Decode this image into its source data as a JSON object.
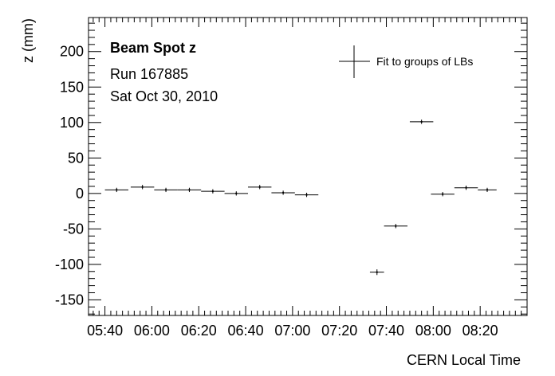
{
  "chart_data": {
    "type": "scatter",
    "title": "Beam Spot z",
    "info_lines": [
      "Run 167885",
      "Sat Oct 30, 2010"
    ],
    "xlabel": "CERN Local Time",
    "ylabel": "z (mm)",
    "xlim": [
      "05:33",
      "08:40"
    ],
    "ylim": [
      -172,
      248
    ],
    "xticks": [
      "05:40",
      "06:00",
      "06:20",
      "06:40",
      "07:00",
      "07:20",
      "07:40",
      "08:00",
      "08:20"
    ],
    "yticks": [
      -150,
      -100,
      -50,
      0,
      50,
      100,
      150,
      200
    ],
    "legend_position": "top-right",
    "series": [
      {
        "name": "Fit to groups of LBs",
        "points": [
          {
            "x": "05:45",
            "xerr_min": 5,
            "y": 5,
            "yerr": 3
          },
          {
            "x": "05:56",
            "xerr_min": 5,
            "y": 9,
            "yerr": 3
          },
          {
            "x": "06:06",
            "xerr_min": 5,
            "y": 5,
            "yerr": 3
          },
          {
            "x": "06:16",
            "xerr_min": 5,
            "y": 5,
            "yerr": 3
          },
          {
            "x": "06:26",
            "xerr_min": 5,
            "y": 3,
            "yerr": 3
          },
          {
            "x": "06:36",
            "xerr_min": 5,
            "y": 0,
            "yerr": 3
          },
          {
            "x": "06:46",
            "xerr_min": 5,
            "y": 9,
            "yerr": 3
          },
          {
            "x": "06:56",
            "xerr_min": 5,
            "y": 1,
            "yerr": 3
          },
          {
            "x": "07:06",
            "xerr_min": 5,
            "y": -2,
            "yerr": 3
          },
          {
            "x": "07:36",
            "xerr_min": 3,
            "y": -111,
            "yerr": 4
          },
          {
            "x": "07:44",
            "xerr_min": 5,
            "y": -46,
            "yerr": 3
          },
          {
            "x": "07:55",
            "xerr_min": 5,
            "y": 101,
            "yerr": 3
          },
          {
            "x": "08:04",
            "xerr_min": 5,
            "y": -1,
            "yerr": 3
          },
          {
            "x": "08:14",
            "xerr_min": 5,
            "y": 8,
            "yerr": 3
          },
          {
            "x": "08:23",
            "xerr_min": 4,
            "y": 5,
            "yerr": 3
          }
        ]
      }
    ]
  }
}
